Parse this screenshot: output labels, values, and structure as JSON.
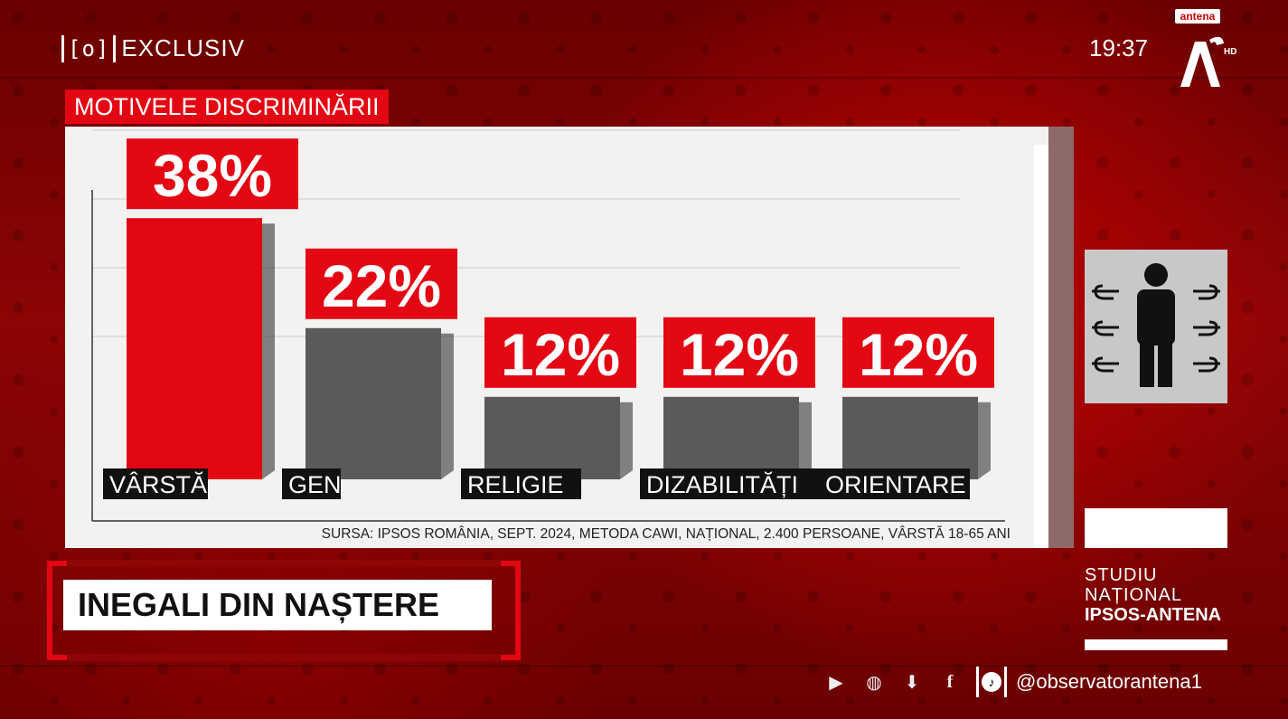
{
  "broadcast": {
    "brand_logo": "[o]",
    "brand_label": "EXCLUSIV",
    "clock": "19:37",
    "channel_tag": "antena",
    "channel_hd": "HD",
    "channel_logo_icon": "antena1-logo-icon"
  },
  "chart_data": {
    "type": "bar",
    "title": "MOTIVELE DISCRIMINĂRII",
    "categories": [
      "VÂRSTĂ",
      "GEN",
      "RELIGIE",
      "DIZABILITĂȚI",
      "ORIENTARE"
    ],
    "values": [
      38,
      22,
      12,
      12,
      12
    ],
    "value_labels": [
      "38%",
      "22%",
      "12%",
      "12%",
      "12%"
    ],
    "ylim": [
      0,
      50
    ],
    "grid": true,
    "colors": {
      "highlight": "#e30613",
      "bar": "#5a5a5a",
      "label_bg": "#e30613"
    },
    "source": "SURSA: IPSOS ROMÂNIA, SEPT. 2024, METODA CAWI, NAȚIONAL, 2.400 PERSOANE, VÂRSTĂ 18-65 ANI"
  },
  "headline": "INEGALI DIN NAȘTERE",
  "side_panel": {
    "illustration_icon": "person-pointed-at-icon",
    "study_line1": "STUDIU",
    "study_line2": "NAȚIONAL",
    "study_line3": "IPSOS-ANTENA"
  },
  "social": {
    "icons": [
      "antena-play-icon",
      "globe-icon",
      "download-app-icon",
      "facebook-icon",
      "tiktok-icon"
    ],
    "handle": "@observatorantena1"
  }
}
